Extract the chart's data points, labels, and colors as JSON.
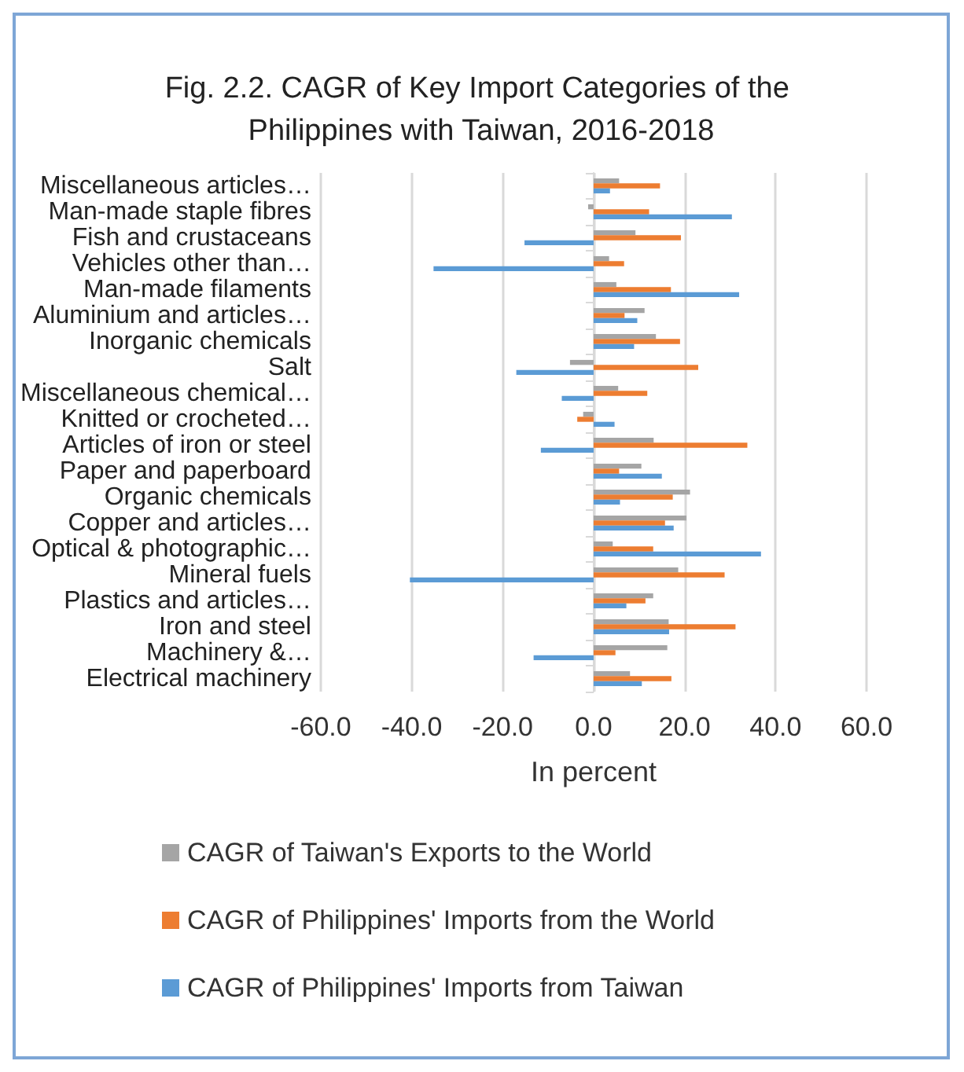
{
  "chart_data": {
    "type": "bar",
    "orientation": "horizontal",
    "title": "Fig. 2.2. CAGR of Key Import Categories of the Philippines with Taiwan, 2016-2018",
    "xlabel": "In percent",
    "categories": [
      "Miscellaneous articles…",
      "Man-made staple fibres",
      "Fish and crustaceans",
      "Vehicles other than…",
      "Man-made filaments",
      "Aluminium and articles…",
      "Inorganic chemicals",
      "Salt",
      "Miscellaneous chemical…",
      "Knitted or crocheted…",
      "Articles of iron or steel",
      "Paper and paperboard",
      "Organic chemicals",
      "Copper and articles…",
      "Optical & photographic…",
      "Mineral fuels",
      "Plastics and articles…",
      "Iron and steel",
      "Machinery &…",
      "Electrical machinery"
    ],
    "series": [
      {
        "name": "CAGR of Taiwan's Exports to the World",
        "color": "#a5a5a5",
        "values": [
          5.6,
          -1.2,
          9.2,
          3.4,
          5.0,
          11.2,
          13.7,
          -5.2,
          5.4,
          -2.3,
          13.2,
          10.5,
          21.2,
          20.4,
          4.2,
          18.6,
          13.1,
          16.5,
          16.2,
          8.0
        ]
      },
      {
        "name": "CAGR of Philippines' Imports from the World",
        "color": "#ed7d31",
        "values": [
          14.6,
          12.2,
          19.2,
          6.7,
          17.0,
          6.8,
          19.0,
          23.0,
          11.8,
          -3.6,
          33.8,
          5.6,
          17.4,
          15.7,
          13.1,
          28.8,
          11.4,
          31.2,
          4.8,
          17.1
        ]
      },
      {
        "name": "CAGR of Philippines' Imports from Taiwan",
        "color": "#5b9bd5",
        "values": [
          3.6,
          30.4,
          -15.2,
          -35.2,
          32.0,
          9.6,
          8.9,
          -17.0,
          -7.0,
          4.6,
          -11.6,
          15.0,
          5.8,
          17.6,
          36.8,
          -40.4,
          7.2,
          16.6,
          -13.2,
          10.6
        ]
      }
    ],
    "xlim": [
      -60,
      60
    ],
    "xticks": [
      {
        "value": -60,
        "label": "-60.0"
      },
      {
        "value": -40,
        "label": "-40.0"
      },
      {
        "value": -20,
        "label": "-20.0"
      },
      {
        "value": 0,
        "label": "0.0"
      },
      {
        "value": 20,
        "label": "20.0"
      },
      {
        "value": 40,
        "label": "40.0"
      },
      {
        "value": 60,
        "label": "60.0"
      }
    ],
    "grid": "x",
    "legend": "bottom"
  }
}
